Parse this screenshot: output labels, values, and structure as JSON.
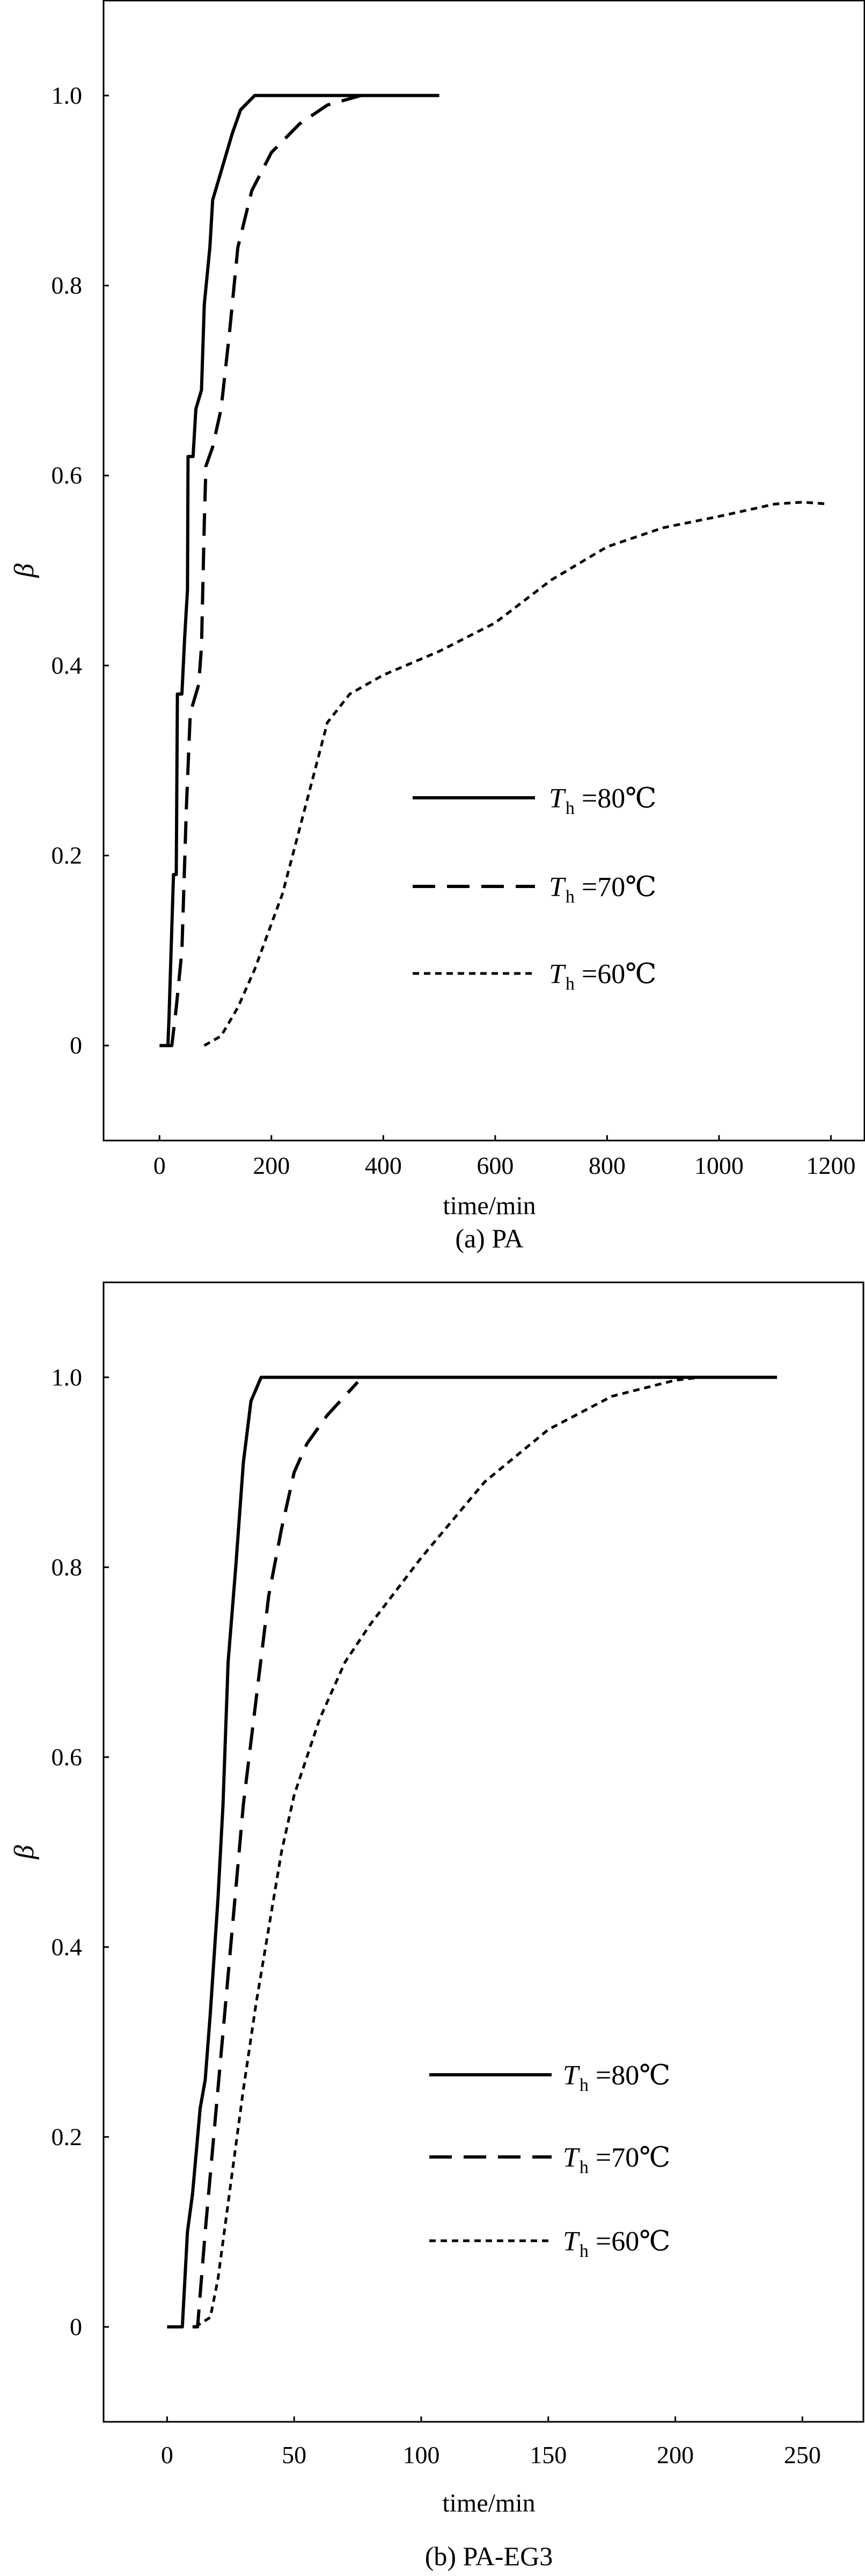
{
  "chart_data": [
    {
      "type": "line",
      "caption": "(a) PA",
      "xlabel": "time/min",
      "ylabel": "β",
      "xlim": [
        -100,
        1260
      ],
      "ylim": [
        -0.1,
        1.1
      ],
      "xticks": [
        0,
        200,
        400,
        600,
        800,
        1000,
        1200
      ],
      "xtick_labels": [
        "0",
        "200",
        "400",
        "600",
        "800",
        "1000",
        "1200"
      ],
      "yticks": [
        0,
        0.2,
        0.4,
        0.6,
        0.8,
        1.0
      ],
      "ytick_labels": [
        "0",
        "0.2",
        "0.4",
        "0.6",
        "0.8",
        "1.0"
      ],
      "legend_position": "lower-right",
      "series": [
        {
          "name": "Th=80℃",
          "legend_symbol": "T",
          "legend_sub": "h",
          "legend_rest": " =80℃",
          "style": "solid",
          "x": [
            0,
            15,
            17,
            25,
            30,
            32,
            40,
            45,
            50,
            51,
            60,
            65,
            75,
            80,
            90,
            95,
            110,
            130,
            145,
            170,
            500
          ],
          "y": [
            0,
            0,
            0.03,
            0.18,
            0.18,
            0.37,
            0.37,
            0.43,
            0.48,
            0.62,
            0.62,
            0.67,
            0.69,
            0.78,
            0.84,
            0.89,
            0.92,
            0.96,
            0.985,
            1.0,
            1.0
          ]
        },
        {
          "name": "Th=70℃",
          "legend_symbol": "T",
          "legend_sub": "h",
          "legend_rest": " =70℃",
          "style": "dashed",
          "x": [
            15,
            22,
            30,
            40,
            48,
            55,
            70,
            75,
            80,
            83,
            95,
            110,
            125,
            140,
            165,
            200,
            250,
            300,
            360
          ],
          "y": [
            0,
            0,
            0.04,
            0.1,
            0.25,
            0.35,
            0.38,
            0.42,
            0.55,
            0.61,
            0.63,
            0.67,
            0.75,
            0.84,
            0.9,
            0.94,
            0.97,
            0.99,
            1.0
          ]
        },
        {
          "name": "Th=60℃",
          "legend_symbol": "T",
          "legend_sub": "h",
          "legend_rest": " =60℃",
          "style": "dotted",
          "x": [
            80,
            110,
            140,
            170,
            220,
            260,
            300,
            340,
            400,
            500,
            600,
            700,
            800,
            900,
            1000,
            1100,
            1150,
            1195
          ],
          "y": [
            0,
            0.01,
            0.04,
            0.08,
            0.16,
            0.25,
            0.34,
            0.37,
            0.39,
            0.415,
            0.445,
            0.49,
            0.525,
            0.545,
            0.557,
            0.57,
            0.572,
            0.57
          ]
        }
      ]
    },
    {
      "type": "line",
      "caption": "(b) PA-EG3",
      "xlabel": "time/min",
      "ylabel": "β",
      "xlim": [
        -25,
        274
      ],
      "ylim": [
        -0.1,
        1.1
      ],
      "xticks": [
        0,
        50,
        100,
        150,
        200,
        250
      ],
      "xtick_labels": [
        "0",
        "50",
        "100",
        "150",
        "200",
        "250"
      ],
      "yticks": [
        0,
        0.2,
        0.4,
        0.6,
        0.8,
        1.0
      ],
      "ytick_labels": [
        "0",
        "0.2",
        "0.4",
        "0.6",
        "0.8",
        "1.0"
      ],
      "legend_position": "lower-right",
      "series": [
        {
          "name": "Th=80℃",
          "legend_symbol": "T",
          "legend_sub": "h",
          "legend_rest": " =80℃",
          "style": "solid",
          "x": [
            0,
            6,
            8,
            10,
            13,
            15,
            17,
            20,
            22,
            24,
            27,
            30,
            33,
            37,
            240
          ],
          "y": [
            0,
            0,
            0.1,
            0.14,
            0.23,
            0.26,
            0.33,
            0.45,
            0.55,
            0.7,
            0.8,
            0.91,
            0.975,
            1.0,
            1.0
          ]
        },
        {
          "name": "Th=70℃",
          "legend_symbol": "T",
          "legend_sub": "h",
          "legend_rest": " =70℃",
          "style": "dashed",
          "x": [
            10,
            12,
            15,
            20,
            25,
            30,
            35,
            40,
            45,
            50,
            55,
            63,
            75
          ],
          "y": [
            0,
            0,
            0.1,
            0.25,
            0.4,
            0.55,
            0.66,
            0.77,
            0.84,
            0.9,
            0.93,
            0.96,
            0.995
          ]
        },
        {
          "name": "Th=60℃",
          "legend_symbol": "T",
          "legend_sub": "h",
          "legend_rest": " =60℃",
          "style": "dotted",
          "x": [
            11,
            17,
            20,
            25,
            30,
            35,
            40,
            45,
            50,
            60,
            70,
            80,
            100,
            125,
            150,
            175,
            200,
            210
          ],
          "y": [
            0,
            0.01,
            0.05,
            0.15,
            0.25,
            0.34,
            0.42,
            0.5,
            0.56,
            0.64,
            0.7,
            0.74,
            0.81,
            0.89,
            0.945,
            0.98,
            0.997,
            1.0
          ]
        }
      ]
    }
  ]
}
